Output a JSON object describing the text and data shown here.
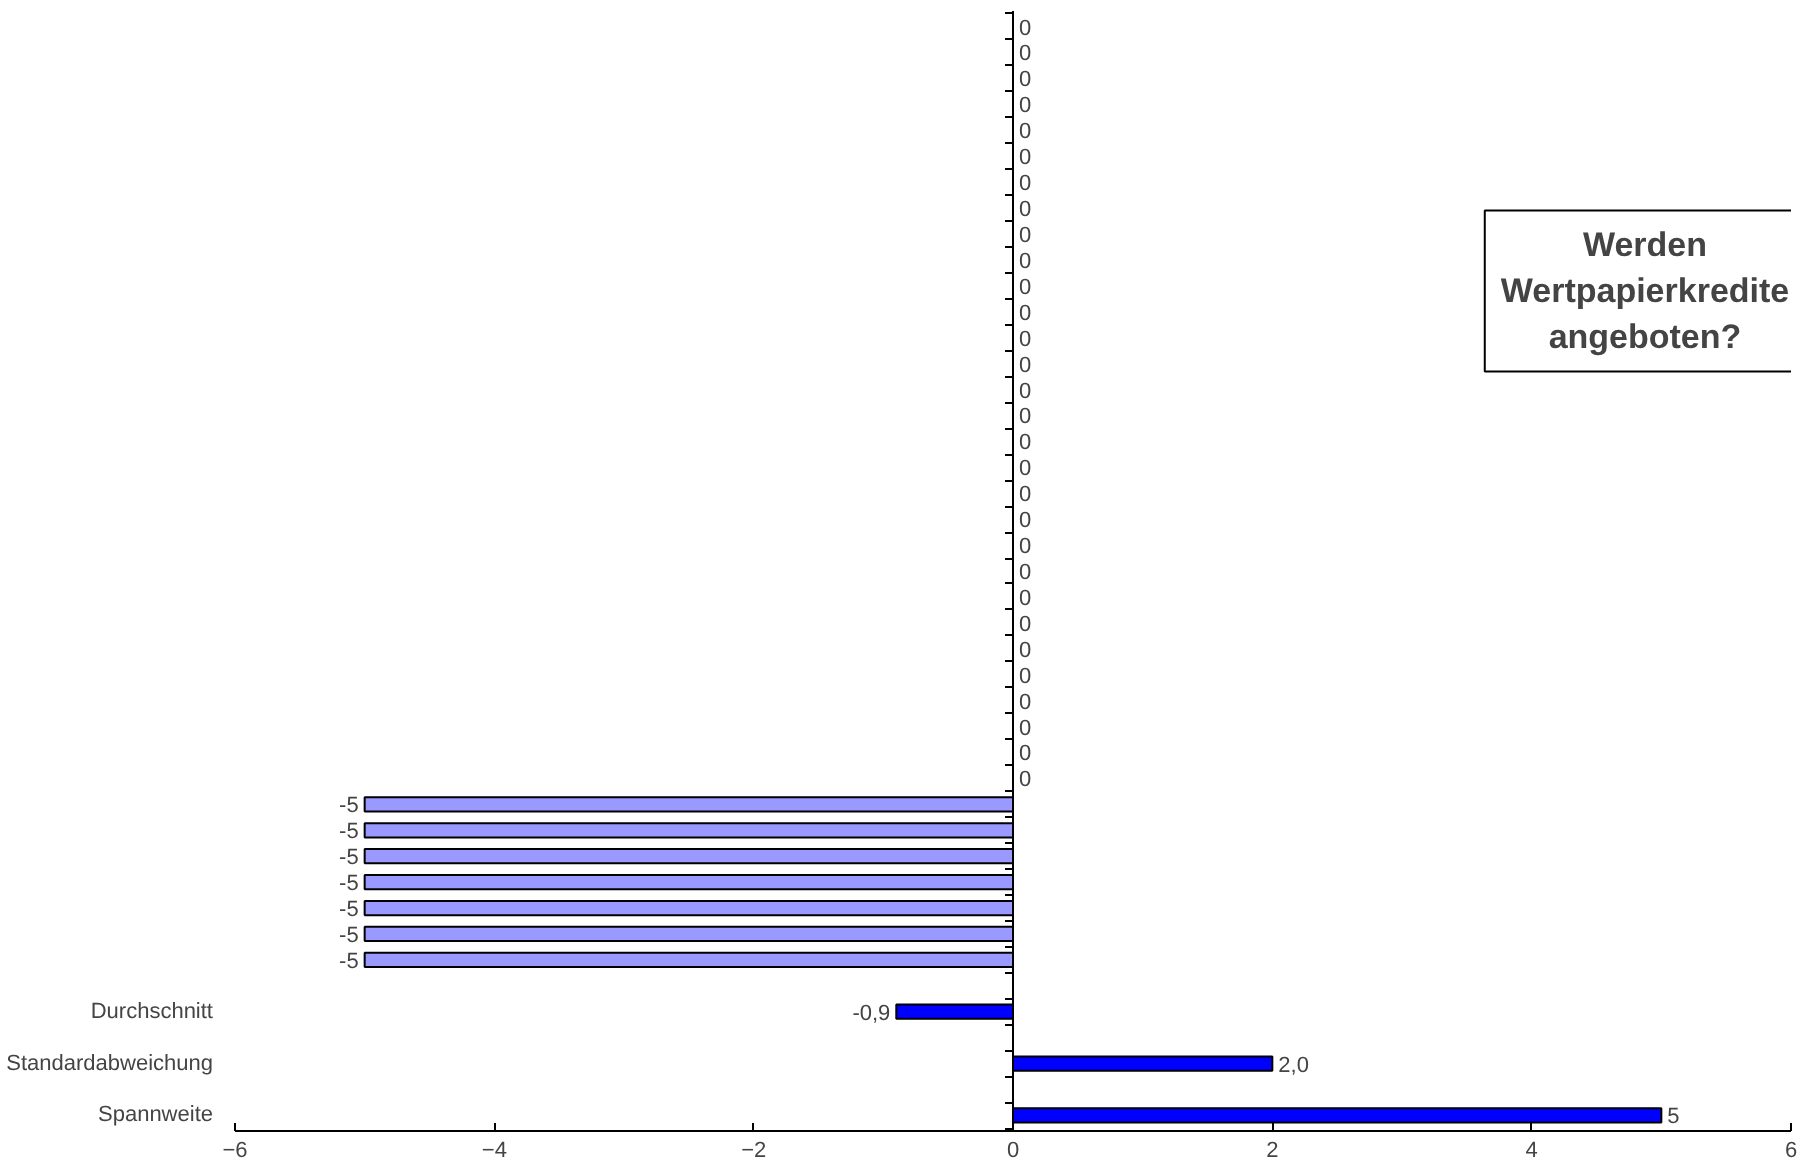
{
  "chart_data": {
    "type": "bar",
    "orientation": "horizontal",
    "title": "Werden Wertpapierkredite angeboten?",
    "categories": [
      null,
      null,
      null,
      null,
      null,
      null,
      null,
      null,
      null,
      null,
      null,
      null,
      null,
      null,
      null,
      null,
      null,
      null,
      null,
      null,
      null,
      null,
      null,
      null,
      null,
      null,
      null,
      null,
      null,
      null,
      null,
      null,
      null,
      null,
      null,
      null,
      null,
      null,
      "Durchschnitt",
      null,
      "Standardabweichung",
      null,
      "Spannweite"
    ],
    "values": [
      0,
      0,
      0,
      0,
      0,
      0,
      0,
      0,
      0,
      0,
      0,
      0,
      0,
      0,
      0,
      0,
      0,
      0,
      0,
      0,
      0,
      0,
      0,
      0,
      0,
      0,
      0,
      0,
      0,
      0,
      -5,
      -5,
      -5,
      -5,
      -5,
      -5,
      -5,
      null,
      -0.9,
      null,
      2.0,
      null,
      5
    ],
    "value_labels": [
      "0",
      "0",
      "0",
      "0",
      "0",
      "0",
      "0",
      "0",
      "0",
      "0",
      "0",
      "0",
      "0",
      "0",
      "0",
      "0",
      "0",
      "0",
      "0",
      "0",
      "0",
      "0",
      "0",
      "0",
      "0",
      "0",
      "0",
      "0",
      "0",
      "0",
      "-5",
      "-5",
      "-5",
      "-5",
      "-5",
      "-5",
      "-5",
      null,
      "-0,9",
      null,
      "2,0",
      null,
      "5"
    ],
    "colors": [
      "#9999ff",
      "#9999ff",
      "#9999ff",
      "#9999ff",
      "#9999ff",
      "#9999ff",
      "#9999ff",
      "#9999ff",
      "#9999ff",
      "#9999ff",
      "#9999ff",
      "#9999ff",
      "#9999ff",
      "#9999ff",
      "#9999ff",
      "#9999ff",
      "#9999ff",
      "#9999ff",
      "#9999ff",
      "#9999ff",
      "#9999ff",
      "#9999ff",
      "#9999ff",
      "#9999ff",
      "#9999ff",
      "#9999ff",
      "#9999ff",
      "#9999ff",
      "#9999ff",
      "#9999ff",
      "#9999ff",
      "#9999ff",
      "#9999ff",
      "#9999ff",
      "#9999ff",
      "#9999ff",
      "#9999ff",
      "#0000ff",
      "#0000ff",
      "#0000ff",
      "#0000ff",
      "#0000ff",
      "#0000ff"
    ],
    "xlim": [
      -6,
      6
    ],
    "xticks": [
      -6,
      -4,
      -2,
      0,
      2,
      4,
      6
    ]
  }
}
